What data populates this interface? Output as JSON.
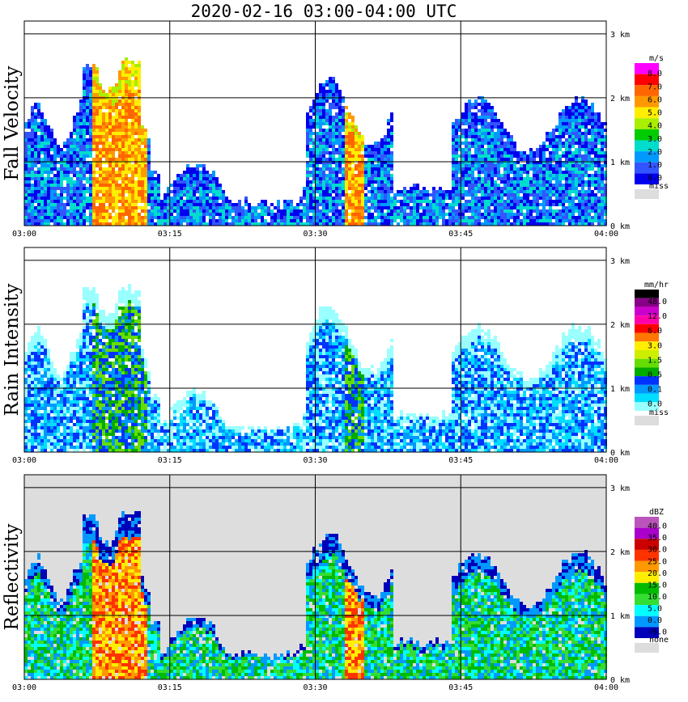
{
  "title": "2020-02-16   03:00-04:00 UTC",
  "chart_data": [
    {
      "type": "heatmap",
      "ylabel": "Fall Velocity",
      "x_ticks": [
        "03:00",
        "03:15",
        "03:30",
        "03:45",
        "04:00"
      ],
      "y_ticks": [
        "0 km",
        "1 km",
        "2 km",
        "3 km"
      ],
      "ylim": [
        0,
        3.2
      ],
      "legend": {
        "unit": "m/s",
        "labels": [
          "8.0",
          "7.0",
          "6.0",
          "5.0",
          "4.0",
          "3.0",
          "2.0",
          "1.0",
          "0.0"
        ],
        "colors": [
          "#ff00ff",
          "#ff0000",
          "#ff6600",
          "#ff9900",
          "#ffee00",
          "#aaee00",
          "#00cc00",
          "#00ddcc",
          "#0099ff",
          "#3355ff",
          "#0000ee"
        ],
        "missing_label": "miss",
        "missing_color": "#dddddd"
      }
    },
    {
      "type": "heatmap",
      "ylabel": "Rain Intensity",
      "x_ticks": [
        "03:00",
        "03:15",
        "03:30",
        "03:45",
        "04:00"
      ],
      "y_ticks": [
        "0 km",
        "1 km",
        "2 km",
        "3 km"
      ],
      "ylim": [
        0,
        3.2
      ],
      "legend": {
        "unit": "mm/hr",
        "labels": [
          "48.0",
          "12.0",
          "6.0",
          "3.0",
          "1.5",
          "0.5",
          "0.1",
          "0.0"
        ],
        "colors": [
          "#000000",
          "#880088",
          "#cc00cc",
          "#ff00aa",
          "#ff0000",
          "#ff7700",
          "#ffee00",
          "#ccee00",
          "#66dd00",
          "#00aa00",
          "#0033ff",
          "#0099ff",
          "#00ddff",
          "#99ffff"
        ],
        "missing_label": "miss",
        "missing_color": "#dddddd"
      }
    },
    {
      "type": "heatmap",
      "ylabel": "Reflectivity",
      "x_ticks": [
        "03:00",
        "03:15",
        "03:30",
        "03:45",
        "04:00"
      ],
      "y_ticks": [
        "0 km",
        "1 km",
        "2 km",
        "3 km"
      ],
      "ylim": [
        0,
        3.2
      ],
      "legend": {
        "unit": "dBZ",
        "labels": [
          "40.0",
          "35.0",
          "30.0",
          "25.0",
          "20.0",
          "15.0",
          "10.0",
          "5.0",
          "0.0",
          "−5.0"
        ],
        "colors": [
          "#bb55bb",
          "#aa00cc",
          "#cc0000",
          "#ff3300",
          "#ff9900",
          "#ffee00",
          "#00bb00",
          "#33dd33",
          "#00ffff",
          "#0099ff",
          "#0000bb"
        ],
        "missing_label": "none",
        "missing_color": "#dddddd"
      }
    }
  ]
}
